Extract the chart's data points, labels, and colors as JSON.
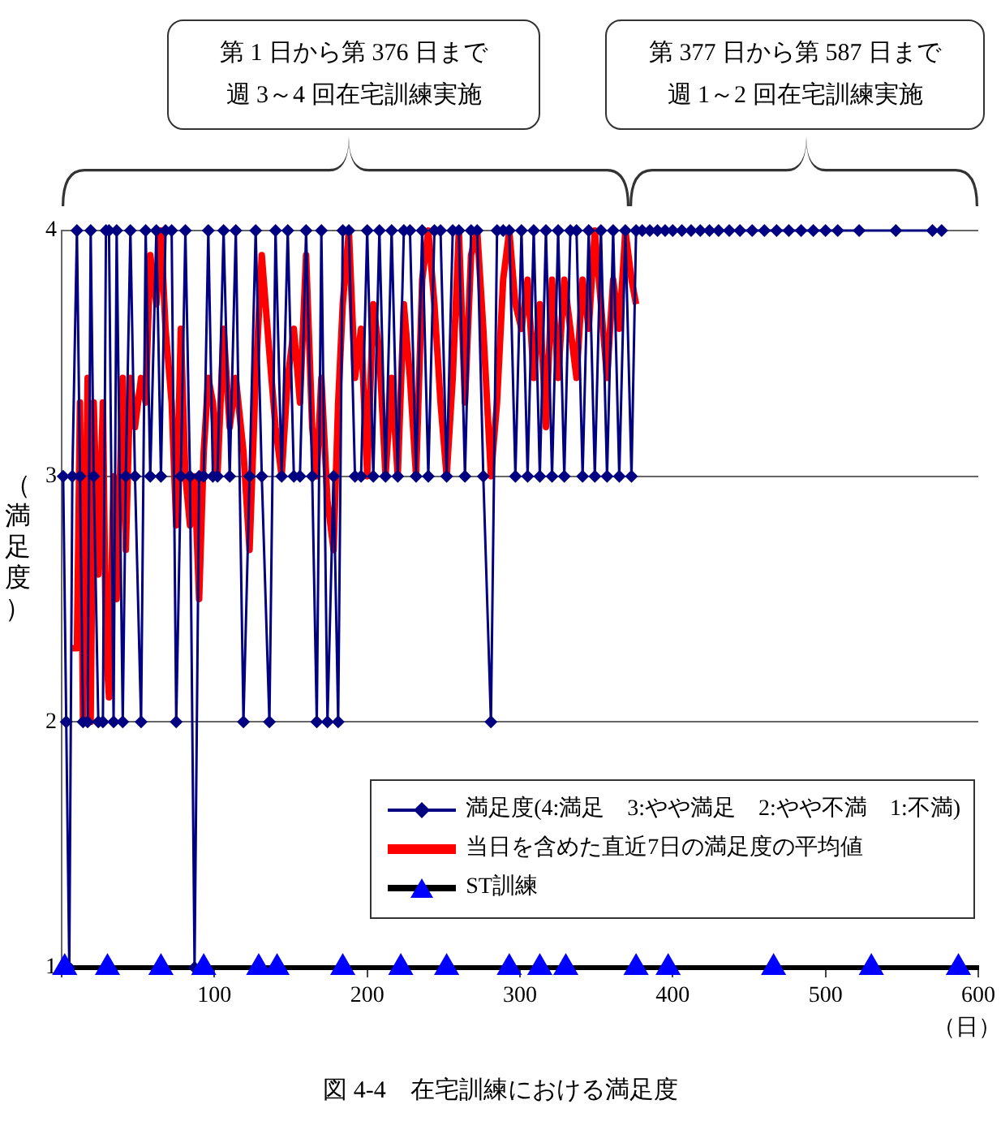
{
  "chart_data": {
    "type": "line",
    "ylabel": "（満足度）",
    "xlabel": "（日）",
    "xlim": [
      0,
      600
    ],
    "xticks": [
      {
        "value": 0,
        "label": null
      },
      100,
      200,
      300,
      400,
      500,
      600
    ],
    "ylim": [
      1,
      4
    ],
    "yticks": [
      1,
      2,
      3,
      4
    ],
    "grid": "y",
    "legend": "bottom right",
    "annotations": [
      "第 1 日から第 376 日まで週 3～4 回在宅訓練実施",
      "第 377 日から第 587 日まで週 1～2 回在宅訓練実施",
      "図 4-4　在宅訓練における満足度"
    ],
    "series": [
      {
        "name": "満足度(4:満足　3:やや満足　2:やや不満　1:不満)",
        "color": "#000080",
        "marker": "diamond",
        "type": "line",
        "x": [
          1,
          3,
          5,
          7,
          10,
          12,
          14,
          17,
          19,
          21,
          24,
          27,
          29,
          31,
          34,
          36,
          40,
          42,
          45,
          48,
          52,
          55,
          58,
          62,
          65,
          68,
          72,
          75,
          78,
          81,
          84,
          87,
          90,
          93,
          96,
          99,
          102,
          106,
          110,
          114,
          119,
          123,
          127,
          131,
          136,
          140,
          144,
          148,
          152,
          156,
          160,
          164,
          167,
          170,
          174,
          178,
          181,
          184,
          188,
          192,
          196,
          200,
          204,
          208,
          212,
          216,
          220,
          224,
          228,
          232,
          236,
          240,
          244,
          248,
          252,
          256,
          260,
          264,
          268,
          272,
          276,
          281,
          285,
          289,
          293,
          297,
          301,
          305,
          309,
          313,
          317,
          321,
          325,
          329,
          333,
          337,
          341,
          345,
          349,
          353,
          357,
          361,
          365,
          369,
          373,
          376,
          380,
          385,
          390,
          395,
          400,
          406,
          412,
          418,
          424,
          430,
          437,
          444,
          452,
          460,
          468,
          476,
          484,
          492,
          500,
          508,
          522,
          546,
          570,
          576
        ],
        "values": [
          3,
          2,
          1,
          3,
          4,
          3,
          2,
          2,
          4,
          3,
          2,
          2,
          4,
          4,
          2,
          4,
          2,
          3,
          4,
          3,
          2,
          4,
          3,
          4,
          3,
          4,
          4,
          2,
          3,
          4,
          3,
          1,
          3,
          3,
          4,
          3,
          3,
          4,
          3,
          4,
          2,
          3,
          4,
          3,
          2,
          4,
          3,
          4,
          3,
          3,
          4,
          3,
          2,
          4,
          2,
          3,
          2,
          4,
          4,
          3,
          3,
          4,
          3,
          4,
          3,
          4,
          3,
          4,
          4,
          3,
          4,
          3,
          4,
          4,
          3,
          4,
          4,
          3,
          4,
          4,
          3,
          2,
          4,
          4,
          4,
          3,
          4,
          3,
          4,
          3,
          4,
          3,
          4,
          3,
          4,
          4,
          3,
          4,
          3,
          4,
          3,
          4,
          3,
          4,
          3,
          4,
          4,
          4,
          4,
          4,
          4,
          4,
          4,
          4,
          4,
          4,
          4,
          4,
          4,
          4,
          4,
          4,
          4,
          4,
          4,
          4,
          4,
          4,
          4,
          4
        ]
      },
      {
        "name": "当日を含めた直近7日の満足度の平均値",
        "color": "#ff0000",
        "marker": "none",
        "type": "line",
        "x": [
          7,
          10,
          12,
          14,
          17,
          19,
          21,
          24,
          27,
          29,
          31,
          34,
          36,
          40,
          42,
          45,
          48,
          52,
          55,
          58,
          62,
          65,
          68,
          72,
          75,
          78,
          81,
          84,
          87,
          90,
          93,
          96,
          99,
          102,
          106,
          110,
          114,
          119,
          123,
          127,
          131,
          136,
          140,
          144,
          148,
          152,
          156,
          160,
          164,
          167,
          170,
          174,
          178,
          181,
          184,
          188,
          192,
          196,
          200,
          204,
          208,
          212,
          216,
          220,
          224,
          228,
          232,
          236,
          240,
          244,
          248,
          252,
          256,
          260,
          264,
          268,
          272,
          276,
          281,
          285,
          289,
          293,
          297,
          301,
          305,
          309,
          313,
          317,
          321,
          325,
          329,
          333,
          337,
          341,
          345,
          349,
          353,
          357,
          361,
          365,
          369,
          373,
          376
        ],
        "values": [
          2.3,
          2.3,
          3.3,
          2.0,
          3.4,
          2.0,
          3.3,
          2.6,
          3.3,
          2.3,
          2.1,
          3.0,
          2.5,
          3.4,
          2.7,
          3.4,
          3.2,
          3.4,
          3.3,
          3.9,
          3.7,
          4.0,
          3.6,
          3.3,
          2.8,
          3.6,
          3.0,
          2.8,
          3.0,
          2.5,
          3.1,
          3.4,
          3.3,
          3.0,
          3.6,
          3.2,
          3.4,
          3.1,
          2.7,
          3.4,
          3.9,
          3.5,
          3.2,
          3.0,
          3.4,
          3.6,
          3.3,
          3.9,
          3.2,
          3.0,
          3.4,
          2.9,
          2.7,
          3.3,
          3.7,
          4.0,
          3.4,
          3.6,
          3.0,
          3.7,
          3.5,
          3.0,
          3.4,
          3.0,
          3.7,
          3.4,
          3.0,
          3.8,
          4.0,
          3.7,
          3.3,
          3.0,
          3.4,
          4.0,
          3.3,
          3.9,
          4.0,
          3.6,
          3.0,
          3.3,
          3.8,
          4.0,
          3.7,
          3.6,
          3.8,
          3.4,
          3.7,
          3.2,
          3.8,
          3.4,
          3.8,
          3.6,
          3.4,
          3.8,
          3.6,
          4.0,
          3.7,
          3.4,
          3.8,
          3.6,
          4.0,
          3.8,
          3.7
        ]
      },
      {
        "name": "ST訓練",
        "color": "#0000ff",
        "marker": "triangle",
        "type": "scatter",
        "x": [
          2,
          30,
          65,
          93,
          129,
          141,
          184,
          222,
          252,
          293,
          313,
          330,
          376,
          397,
          466,
          530,
          587
        ],
        "values": [
          1,
          1,
          1,
          1,
          1,
          1,
          1,
          1,
          1,
          1,
          1,
          1,
          1,
          1,
          1,
          1,
          1
        ]
      }
    ]
  }
}
